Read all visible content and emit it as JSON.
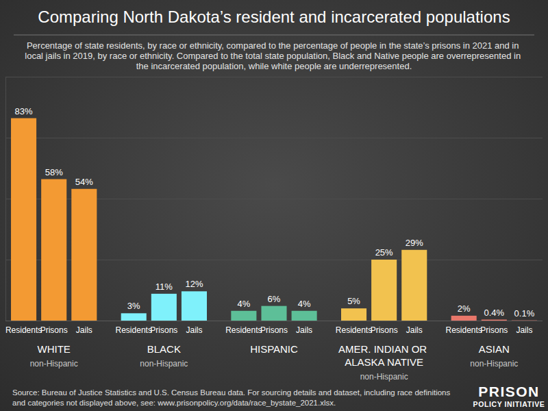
{
  "chart_data": {
    "type": "bar",
    "title": "Comparing North Dakota’s resident and incarcerated populations",
    "subtitle": "Percentage of state residents, by race or ethnicity, compared to the percentage of people in the state’s prisons in 2021 and in local jails in 2019, by race or ethnicity. Compared to the total state population, Black and Native people are overrepresented in the incarcerated population, while white people are underrepresented.",
    "source": "Source: Bureau of Justice Statistics and U.S. Census Bureau data. For sourcing details and dataset, including race definitions and categories not displayed above, see: www.prisonpolicy.org/data/race_bystate_2021.xlsx.",
    "logo": [
      "PRISON",
      "POLICY INITIATIVE"
    ],
    "categories": [
      "Residents",
      "Prisons",
      "Jails"
    ],
    "series": [
      {
        "name": "WHITE",
        "group_note": "non-Hispanic",
        "color": "#f39a33",
        "values": [
          83,
          58,
          54
        ],
        "value_labels": [
          "83%",
          "58%",
          "54%"
        ]
      },
      {
        "name": "BLACK",
        "group_note": "non-Hispanic",
        "color": "#7ff1fb",
        "values": [
          3,
          11,
          12
        ],
        "value_labels": [
          "3%",
          "11%",
          "12%"
        ]
      },
      {
        "name": "HISPANIC",
        "color": "#5dbf98",
        "values": [
          4,
          6,
          4
        ],
        "value_labels": [
          "4%",
          "6%",
          "4%"
        ]
      },
      {
        "name": "AMER. INDIAN OR ALASKA NATIVE",
        "group_note": "non-Hispanic",
        "color": "#f2c24f",
        "values": [
          5,
          25,
          29
        ],
        "value_labels": [
          "5%",
          "25%",
          "29%"
        ]
      },
      {
        "name": "ASIAN",
        "group_note": "non-Hispanic",
        "color": "#e8776a",
        "values": [
          2,
          0.4,
          0.1
        ],
        "value_labels": [
          "2%",
          "0.4%",
          "0.1%"
        ]
      }
    ],
    "ylim": [
      0,
      100
    ],
    "yticks": [
      0,
      25,
      50,
      75,
      100
    ],
    "grid": true,
    "tick_labels": false,
    "data_labels": true
  }
}
